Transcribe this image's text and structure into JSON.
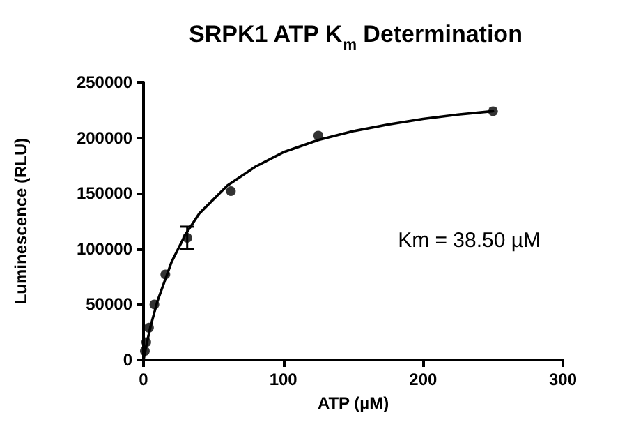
{
  "chart_data": {
    "type": "scatter",
    "title": "SRPK1 ATP K$_{m}$ Determination",
    "xlabel": "ATP (µM)",
    "ylabel": "Luminescence (RLU)",
    "xlim": [
      0,
      300
    ],
    "xticks": [
      0,
      100,
      200,
      300
    ],
    "ylim": [
      0,
      250000
    ],
    "yticks": [
      0,
      50000,
      100000,
      150000,
      200000,
      250000
    ],
    "grid": false,
    "legend": false,
    "series": [
      {
        "marker": "circle",
        "color": "#000000",
        "x": [
          0.98,
          1.95,
          3.9,
          7.8,
          15.6,
          31.25,
          62.5,
          125,
          250
        ],
        "values": [
          8000,
          16000,
          29000,
          50000,
          77000,
          110000,
          152000,
          202000,
          224000
        ],
        "errors": [
          null,
          null,
          null,
          null,
          null,
          10000,
          null,
          null,
          null
        ]
      },
      {
        "type": "line",
        "marker": "none",
        "line_style": "solid",
        "color": "#000000",
        "x": [
          0,
          2,
          5,
          10,
          20,
          30,
          40,
          60,
          80,
          100,
          125,
          150,
          175,
          200,
          225,
          250
        ],
        "values": [
          0,
          13000,
          30000,
          53000,
          88000,
          113000,
          132000,
          157000,
          174000,
          187000,
          198000,
          206000,
          212000,
          217000,
          221000,
          224000
        ]
      }
    ],
    "annotations": [
      "Km = 38.50 µM"
    ]
  }
}
